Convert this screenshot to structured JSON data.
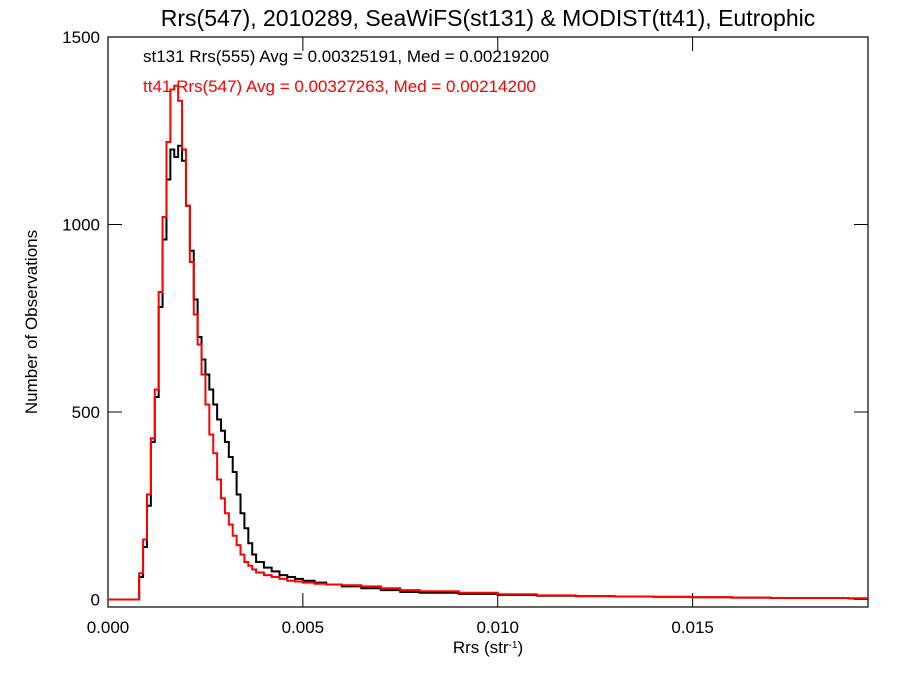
{
  "chart_data": {
    "type": "line",
    "title": "Rrs(547), 2010289, SeaWiFS(st131) & MODIST(tt41), Eutrophic",
    "xlabel_main": "Rrs (str",
    "xlabel_sup": "-1",
    "xlabel_close": ")",
    "ylabel": "Number of Observations",
    "xlim": [
      0.0,
      0.0195
    ],
    "ylim": [
      -20,
      1500
    ],
    "xticks": [
      0.0,
      0.005,
      0.01,
      0.015
    ],
    "xtick_labels": [
      "0.000",
      "0.005",
      "0.010",
      "0.015"
    ],
    "yticks": [
      0,
      500,
      1000,
      1500
    ],
    "ytick_labels": [
      "0",
      "500",
      "1000",
      "1500"
    ],
    "legend_placement": "top-left",
    "grid": false,
    "series": [
      {
        "name": "st131 Rrs(555) Avg = 0.00325191, Med = 0.00219200",
        "color": "#000000",
        "x": [
          0.0,
          0.0007,
          0.0008,
          0.0009,
          0.001,
          0.0011,
          0.0012,
          0.0013,
          0.0014,
          0.0015,
          0.0016,
          0.0017,
          0.0018,
          0.0019,
          0.002,
          0.0021,
          0.0022,
          0.0023,
          0.0024,
          0.0025,
          0.0026,
          0.0027,
          0.0028,
          0.0029,
          0.003,
          0.0031,
          0.0032,
          0.0033,
          0.0034,
          0.0035,
          0.0036,
          0.0037,
          0.0038,
          0.004,
          0.0042,
          0.0044,
          0.0046,
          0.0048,
          0.005,
          0.0053,
          0.0056,
          0.006,
          0.0065,
          0.007,
          0.0075,
          0.008,
          0.009,
          0.01,
          0.011,
          0.012,
          0.013,
          0.014,
          0.015,
          0.016,
          0.017,
          0.018,
          0.019,
          0.0195
        ],
        "values": [
          0,
          0,
          60,
          140,
          250,
          420,
          540,
          780,
          960,
          1120,
          1200,
          1180,
          1210,
          1170,
          1050,
          930,
          800,
          700,
          640,
          600,
          560,
          520,
          480,
          450,
          420,
          380,
          340,
          280,
          230,
          190,
          150,
          120,
          100,
          85,
          75,
          65,
          60,
          55,
          50,
          45,
          40,
          35,
          30,
          25,
          20,
          18,
          15,
          12,
          10,
          9,
          8,
          7,
          6,
          5,
          4,
          4,
          3,
          3
        ]
      },
      {
        "name": "tt41 Rrs(547) Avg = 0.00327263, Med = 0.00214200",
        "color": "#ff0000",
        "x": [
          0.0,
          0.0007,
          0.0008,
          0.0009,
          0.001,
          0.0011,
          0.0012,
          0.0013,
          0.0014,
          0.0015,
          0.0016,
          0.0017,
          0.0018,
          0.0019,
          0.002,
          0.0021,
          0.0022,
          0.0023,
          0.0024,
          0.0025,
          0.0026,
          0.0027,
          0.0028,
          0.0029,
          0.003,
          0.0031,
          0.0032,
          0.0033,
          0.0034,
          0.0035,
          0.0036,
          0.0037,
          0.0038,
          0.004,
          0.0042,
          0.0044,
          0.0046,
          0.0048,
          0.005,
          0.0053,
          0.0056,
          0.006,
          0.0065,
          0.007,
          0.0075,
          0.008,
          0.009,
          0.01,
          0.011,
          0.012,
          0.013,
          0.014,
          0.015,
          0.016,
          0.017,
          0.018,
          0.019,
          0.0195
        ],
        "values": [
          0,
          0,
          70,
          160,
          280,
          430,
          560,
          820,
          1020,
          1220,
          1360,
          1370,
          1330,
          1200,
          1050,
          900,
          760,
          680,
          600,
          520,
          440,
          390,
          320,
          270,
          230,
          200,
          170,
          145,
          120,
          100,
          90,
          80,
          72,
          65,
          60,
          55,
          50,
          48,
          45,
          42,
          40,
          38,
          35,
          30,
          25,
          22,
          18,
          14,
          11,
          9,
          8,
          7,
          6,
          5,
          4,
          4,
          3,
          3
        ]
      }
    ]
  }
}
